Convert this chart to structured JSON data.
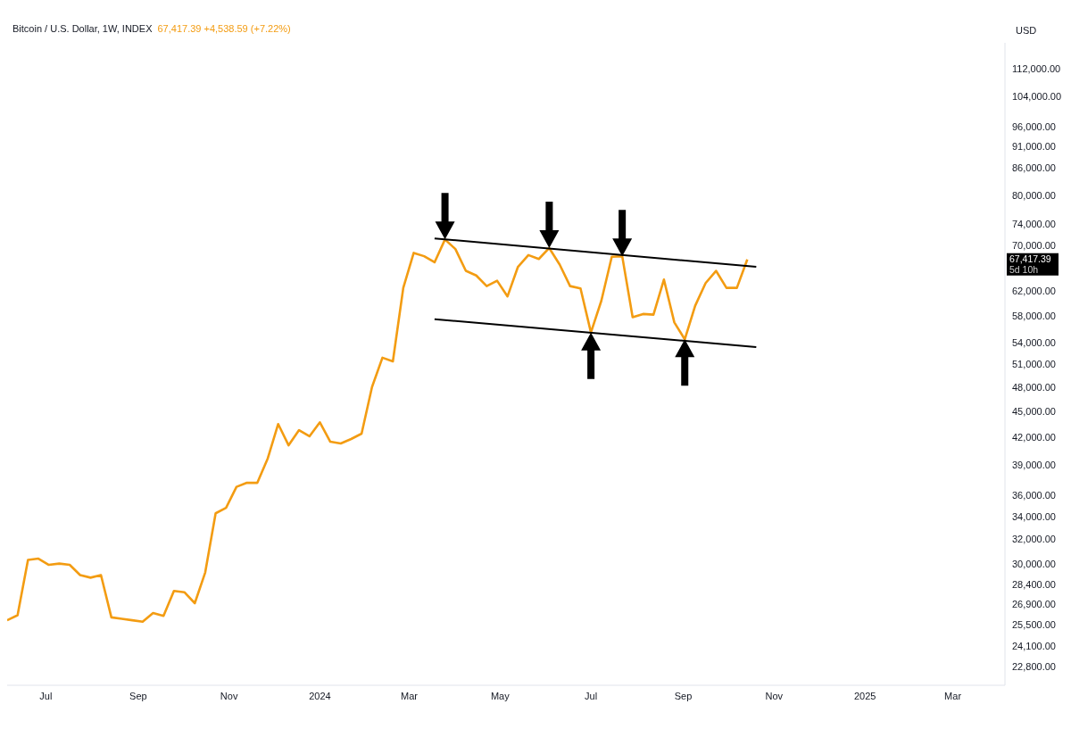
{
  "chart_data": {
    "type": "line",
    "title": "Bitcoin / U.S. Dollar, 1W, INDEX",
    "subtitle": "67,417.39 +4,538.59 (+7.22%)",
    "ylabel": "USD",
    "annotations": [
      "67,417.39",
      "5d 10h"
    ],
    "x": [
      "2023-06-05",
      "2023-06-12",
      "2023-06-19",
      "2023-06-26",
      "2023-07-03",
      "2023-07-10",
      "2023-07-17",
      "2023-07-24",
      "2023-07-31",
      "2023-08-07",
      "2023-08-14",
      "2023-08-21",
      "2023-08-28",
      "2023-09-04",
      "2023-09-11",
      "2023-09-18",
      "2023-09-25",
      "2023-10-02",
      "2023-10-09",
      "2023-10-16",
      "2023-10-23",
      "2023-10-30",
      "2023-11-06",
      "2023-11-13",
      "2023-11-20",
      "2023-11-27",
      "2023-12-04",
      "2023-12-11",
      "2023-12-18",
      "2023-12-25",
      "2024-01-01",
      "2024-01-08",
      "2024-01-15",
      "2024-01-22",
      "2024-01-29",
      "2024-02-05",
      "2024-02-12",
      "2024-02-19",
      "2024-02-26",
      "2024-03-04",
      "2024-03-11",
      "2024-03-18",
      "2024-03-25",
      "2024-04-01",
      "2024-04-08",
      "2024-04-15",
      "2024-04-22",
      "2024-04-29",
      "2024-05-06",
      "2024-05-13",
      "2024-05-20",
      "2024-05-27",
      "2024-06-03",
      "2024-06-10",
      "2024-06-17",
      "2024-06-24",
      "2024-07-01",
      "2024-07-08",
      "2024-07-15",
      "2024-07-22",
      "2024-07-29",
      "2024-08-05",
      "2024-08-12",
      "2024-08-19",
      "2024-08-26",
      "2024-09-02",
      "2024-09-09",
      "2024-09-16",
      "2024-09-23",
      "2024-09-30",
      "2024-10-07",
      "2024-10-14"
    ],
    "series": [
      {
        "color": "#f39c12",
        "values": [
          25800,
          26150,
          30300,
          30400,
          29900,
          30000,
          29900,
          29100,
          28900,
          29100,
          26000,
          25900,
          25800,
          25700,
          26300,
          26100,
          27900,
          27800,
          27000,
          29300,
          34300,
          34800,
          36800,
          37200,
          37200,
          39700,
          43500,
          41100,
          42800,
          42100,
          43700,
          41500,
          41300,
          41800,
          42400,
          48000,
          51900,
          51400,
          62500,
          68600,
          68000,
          66900,
          71100,
          69300,
          65400,
          64600,
          62800,
          63700,
          61100,
          66100,
          68200,
          67500,
          69500,
          66500,
          62800,
          62400,
          55500,
          60400,
          67900,
          68000,
          57800,
          58300,
          58200,
          63900,
          57000,
          54500,
          59600,
          63300,
          65400,
          62500,
          62500,
          67417.39
        ]
      },
      {
        "type": "line",
        "color": "#000000",
        "x": [
          "2024-03-18",
          "2024-10-20"
        ],
        "values": [
          71300,
          66100
        ]
      },
      {
        "type": "line",
        "color": "#000000",
        "x": [
          "2024-03-18",
          "2024-10-20"
        ],
        "values": [
          57500,
          53400
        ]
      }
    ],
    "xlim": [
      "2023-06-05",
      "2025-04-05"
    ],
    "xticks": [
      {
        "value": "2023-07-01",
        "label": "Jul"
      },
      {
        "value": "2023-09-01",
        "label": "Sep"
      },
      {
        "value": "2023-11-01",
        "label": "Nov"
      },
      {
        "value": "2024-01-01",
        "label": "2024"
      },
      {
        "value": "2024-03-01",
        "label": "Mar"
      },
      {
        "value": "2024-05-01",
        "label": "May"
      },
      {
        "value": "2024-07-01",
        "label": "Jul"
      },
      {
        "value": "2024-09-01",
        "label": "Sep"
      },
      {
        "value": "2024-11-01",
        "label": "Nov"
      },
      {
        "value": "2025-01-01",
        "label": "2025"
      },
      {
        "value": "2025-03-01",
        "label": "Mar"
      }
    ],
    "log": true,
    "ylim": [
      21700,
      120000
    ],
    "yticks": [
      {
        "value": 22800,
        "label": "22,800.00"
      },
      {
        "value": 24100,
        "label": "24,100.00"
      },
      {
        "value": 25500,
        "label": "25,500.00"
      },
      {
        "value": 26900,
        "label": "26,900.00"
      },
      {
        "value": 28400,
        "label": "28,400.00"
      },
      {
        "value": 30000,
        "label": "30,000.00"
      },
      {
        "value": 32000,
        "label": "32,000.00"
      },
      {
        "value": 34000,
        "label": "34,000.00"
      },
      {
        "value": 36000,
        "label": "36,000.00"
      },
      {
        "value": 39000,
        "label": "39,000.00"
      },
      {
        "value": 42000,
        "label": "42,000.00"
      },
      {
        "value": 45000,
        "label": "45,000.00"
      },
      {
        "value": 48000,
        "label": "48,000.00"
      },
      {
        "value": 51000,
        "label": "51,000.00"
      },
      {
        "value": 54000,
        "label": "54,000.00"
      },
      {
        "value": 58000,
        "label": "58,000.00"
      },
      {
        "value": 62000,
        "label": "62,000.00"
      },
      {
        "value": 70000,
        "label": "70,000.00"
      },
      {
        "value": 74000,
        "label": "74,000.00"
      },
      {
        "value": 80000,
        "label": "80,000.00"
      },
      {
        "value": 86000,
        "label": "86,000.00"
      },
      {
        "value": 91000,
        "label": "91,000.00"
      },
      {
        "value": 96000,
        "label": "96,000.00"
      },
      {
        "value": 104000,
        "label": "104,000.00"
      },
      {
        "value": 112000,
        "label": "112,000.00"
      }
    ],
    "marker": "none",
    "line_style": "solid"
  }
}
